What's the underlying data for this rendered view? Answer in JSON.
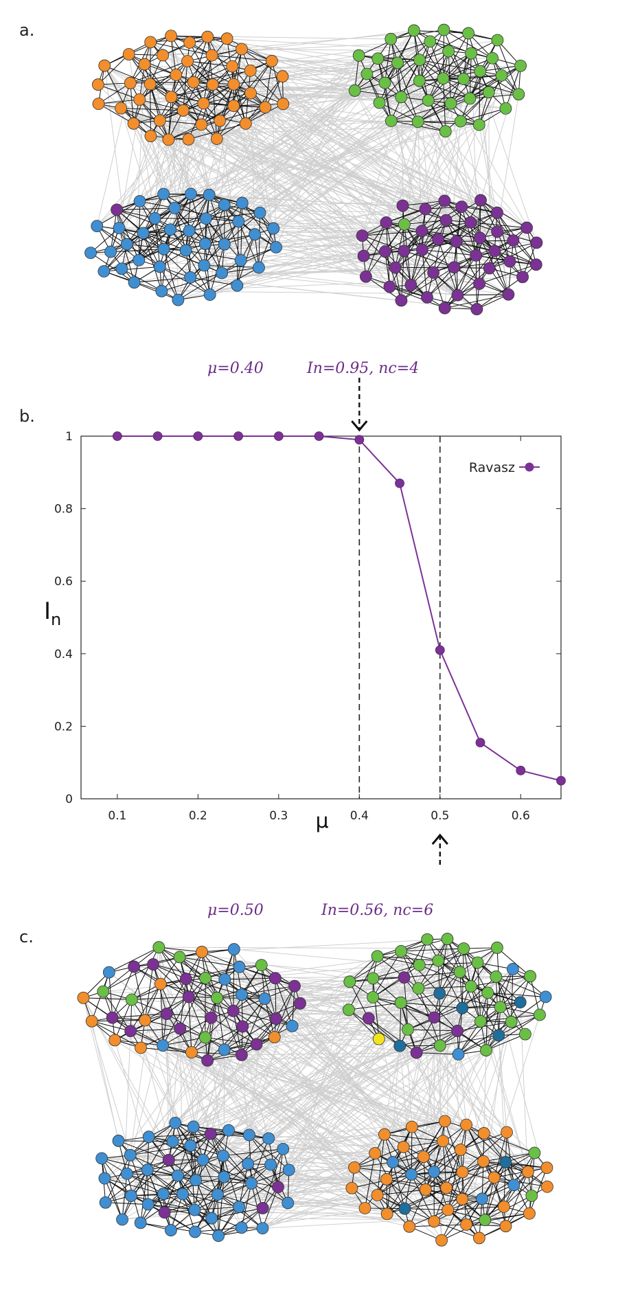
{
  "panels": {
    "a": {
      "label": "a."
    },
    "b": {
      "label": "b."
    },
    "c": {
      "label": "c."
    }
  },
  "annotations": {
    "top_mu": "μ=0.40",
    "top_info": "In=0.95, nc=4",
    "bottom_mu": "μ=0.50",
    "bottom_info": "In=0.56, nc=6"
  },
  "chart_data": {
    "type": "line",
    "xlabel": "μ",
    "ylabel": "In",
    "xlim": [
      0.055,
      0.65
    ],
    "ylim": [
      0,
      1
    ],
    "x_ticks": [
      "0.1",
      "0.2",
      "0.3",
      "0.4",
      "0.5",
      "0.6"
    ],
    "y_ticks": [
      "0",
      "0.2",
      "0.4",
      "0.6",
      "0.8",
      "1"
    ],
    "series": [
      {
        "name": "Ravasz",
        "color": "#7b3294",
        "x": [
          0.1,
          0.15,
          0.2,
          0.25,
          0.3,
          0.35,
          0.4,
          0.45,
          0.5,
          0.55,
          0.6,
          0.65
        ],
        "y": [
          1.0,
          1.0,
          1.0,
          1.0,
          1.0,
          1.0,
          0.99,
          0.87,
          0.41,
          0.155,
          0.078,
          0.05
        ]
      }
    ],
    "vertical_lines": [
      0.4,
      0.5
    ],
    "legend": "top-right"
  },
  "colors": {
    "orange": "#f28e2b",
    "green": "#6abf45",
    "blue": "#3f8fd2",
    "purple": "#7b3294",
    "yellow": "#f2e41b",
    "darkblue": "#1f6e9c",
    "light_edge": "#cfcfcf",
    "dark_edge": "#111111"
  }
}
